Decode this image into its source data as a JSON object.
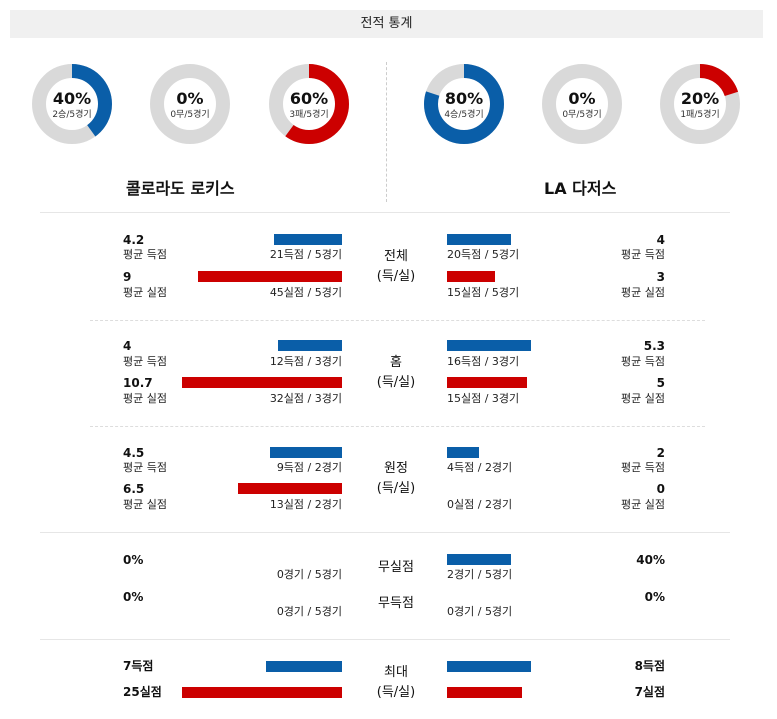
{
  "header": {
    "title": "전적 통계"
  },
  "colors": {
    "blue": "#0a5ea8",
    "red": "#cc0000",
    "track": "#d9d9d9"
  },
  "donuts": [
    {
      "pct": "40%",
      "sub": "2승/5경기",
      "value": 0.4,
      "color": "blue"
    },
    {
      "pct": "0%",
      "sub": "0무/5경기",
      "value": 0.0,
      "color": "blue"
    },
    {
      "pct": "60%",
      "sub": "3패/5경기",
      "value": 0.6,
      "color": "red"
    },
    {
      "pct": "80%",
      "sub": "4승/5경기",
      "value": 0.8,
      "color": "blue"
    },
    {
      "pct": "0%",
      "sub": "0무/5경기",
      "value": 0.0,
      "color": "blue"
    },
    {
      "pct": "20%",
      "sub": "1패/5경기",
      "value": 0.2,
      "color": "red"
    }
  ],
  "teams": {
    "left": "콜로라도 로키스",
    "right": "LA 다저스"
  },
  "sections": {
    "total": {
      "cat1": "전체",
      "cat2": "(득/실)",
      "left_score": {
        "val": "4.2",
        "lbl": "평균 득점",
        "cnt": "21득점 / 5경기"
      },
      "left_allow": {
        "val": "9",
        "lbl": "평균 실점",
        "cnt": "45실점 / 5경기"
      },
      "right_score": {
        "val": "4",
        "lbl": "평균 득점",
        "cnt": "20득점 / 5경기"
      },
      "right_allow": {
        "val": "3",
        "lbl": "평균 실점",
        "cnt": "15실점 / 5경기"
      }
    },
    "home": {
      "cat1": "홈",
      "cat2": "(득/실)",
      "left_score": {
        "val": "4",
        "lbl": "평균 득점",
        "cnt": "12득점 / 3경기"
      },
      "left_allow": {
        "val": "10.7",
        "lbl": "평균 실점",
        "cnt": "32실점 / 3경기"
      },
      "right_score": {
        "val": "5.3",
        "lbl": "평균 득점",
        "cnt": "16득점 / 3경기"
      },
      "right_allow": {
        "val": "5",
        "lbl": "평균 실점",
        "cnt": "15실점 / 3경기"
      }
    },
    "away": {
      "cat1": "원정",
      "cat2": "(득/실)",
      "left_score": {
        "val": "4.5",
        "lbl": "평균 득점",
        "cnt": "9득점 / 2경기"
      },
      "left_allow": {
        "val": "6.5",
        "lbl": "평균 실점",
        "cnt": "13실점 / 2경기"
      },
      "right_score": {
        "val": "2",
        "lbl": "평균 득점",
        "cnt": "4득점 / 2경기"
      },
      "right_allow": {
        "val": "0",
        "lbl": "평균 실점",
        "cnt": "0실점 / 2경기"
      }
    },
    "shutout": {
      "cat_a": "무실점",
      "cat_b": "무득점",
      "left_a": {
        "val": "0%",
        "cnt": "0경기 / 5경기"
      },
      "left_b": {
        "val": "0%",
        "cnt": "0경기 / 5경기"
      },
      "right_a": {
        "val": "40%",
        "cnt": "2경기 / 5경기"
      },
      "right_b": {
        "val": "0%",
        "cnt": "0경기 / 5경기"
      }
    },
    "max": {
      "cat1": "최대",
      "cat2": "(득/실)",
      "left_score": "7득점",
      "left_allow": "25실점",
      "right_score": "8득점",
      "right_allow": "7실점"
    }
  }
}
